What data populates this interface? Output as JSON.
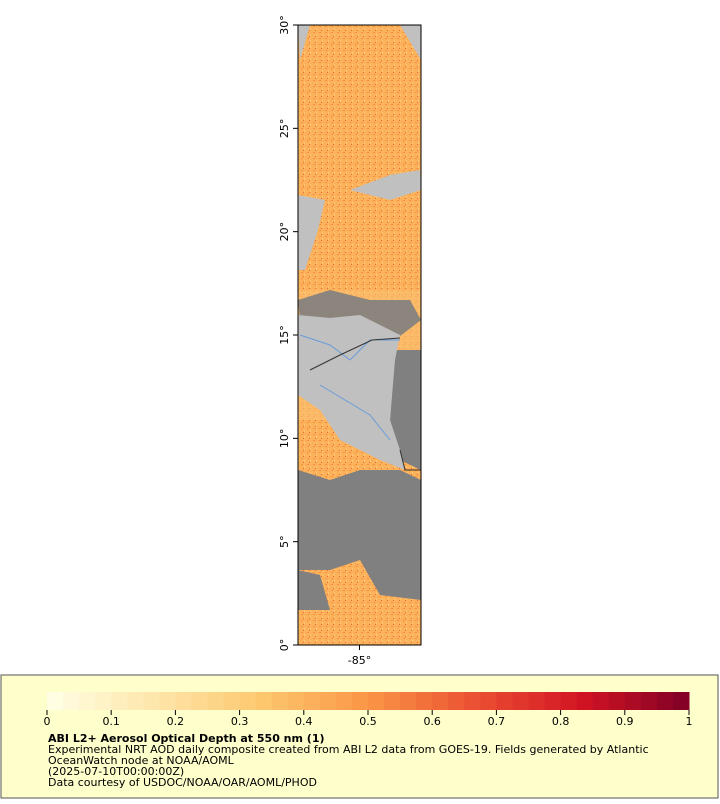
{
  "map": {
    "lat_range": [
      0,
      30
    ],
    "lon_range": [
      -88,
      -82
    ],
    "lat_ticks": [
      {
        "value": 0,
        "label": "0°"
      },
      {
        "value": 5,
        "label": "5°"
      },
      {
        "value": 10,
        "label": "10°"
      },
      {
        "value": 15,
        "label": "15°"
      },
      {
        "value": 20,
        "label": "20°"
      },
      {
        "value": 25,
        "label": "25°"
      },
      {
        "value": 30,
        "label": "30°"
      }
    ],
    "lon_ticks": [
      {
        "value": -85,
        "label": "-85°"
      }
    ]
  },
  "legend": {
    "colorbar_range": [
      0,
      1
    ],
    "colorbar_ticks": [
      0,
      0.1,
      0.2,
      0.3,
      0.4,
      0.5,
      0.6,
      0.7,
      0.8,
      0.9,
      1
    ],
    "title": "ABI L2+ Aerosol Optical Depth at 550 nm (1)",
    "lines": [
      "Experimental NRT AOD daily composite created from ABI L2 data from GOES-19. Fields generated by Atlantic",
      "OceanWatch node at NOAA/AOML",
      "(2025-07-10T00:00:00Z)",
      "Data courtesy of USDOC/NOAA/OAR/AOML/PHOD"
    ]
  }
}
